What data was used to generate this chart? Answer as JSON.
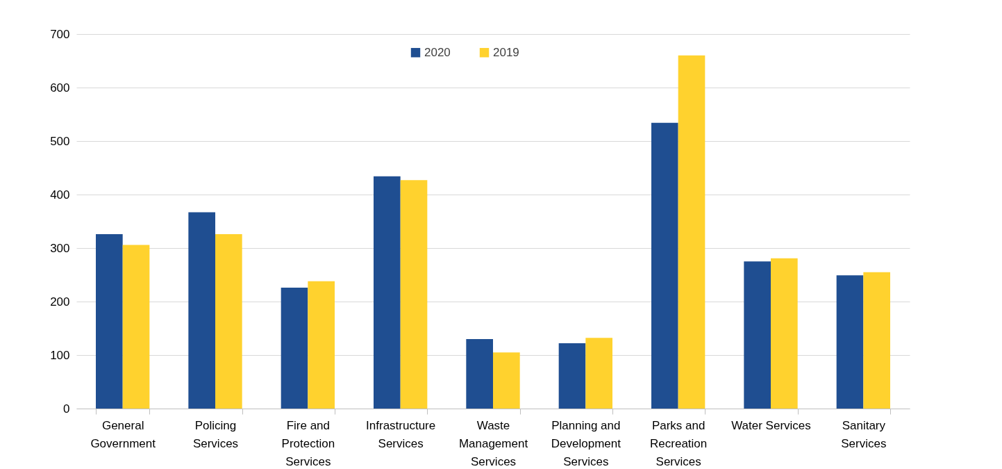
{
  "chart_data": {
    "type": "bar",
    "categories": [
      "General Government",
      "Policing Services",
      "Fire and Protection Services",
      "Infrastructure Services",
      "Waste Management Services",
      "Planning and Development Services",
      "Parks and Recreation Services",
      "Water Services",
      "Sanitary Services"
    ],
    "series": [
      {
        "name": "2020",
        "color": "#1f4e91",
        "values": [
          326,
          367,
          226,
          434,
          130,
          122,
          534,
          275,
          249
        ]
      },
      {
        "name": "2019",
        "color": "#ffd22e",
        "values": [
          306,
          326,
          238,
          427,
          105,
          132,
          660,
          281,
          255
        ]
      }
    ],
    "ylim": [
      0,
      700
    ],
    "yticks": [
      0,
      100,
      200,
      300,
      400,
      500,
      600,
      700
    ],
    "grid": "y",
    "legend": "top"
  }
}
